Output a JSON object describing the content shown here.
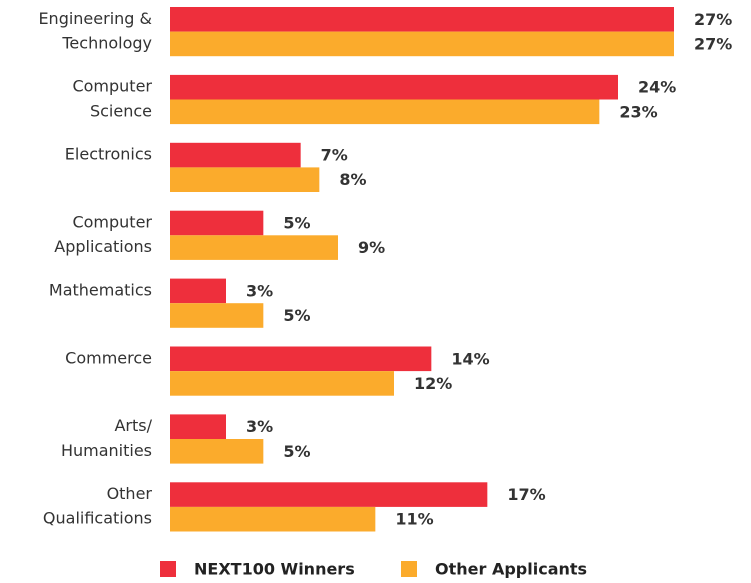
{
  "chart_data": {
    "type": "bar",
    "orientation": "horizontal",
    "categories": [
      [
        "Engineering &",
        "Technology"
      ],
      [
        "Computer",
        "Science"
      ],
      [
        "Electronics"
      ],
      [
        "Computer",
        "Applications"
      ],
      [
        "Mathematics"
      ],
      [
        "Commerce"
      ],
      [
        "Arts/",
        "Humanities"
      ],
      [
        "Other",
        "Qualifications"
      ]
    ],
    "series": [
      {
        "name": "NEXT100 Winners",
        "color": "#ee2f3c",
        "values": [
          27,
          24,
          7,
          5,
          3,
          14,
          3,
          17
        ],
        "value_labels": [
          "27%",
          "24%",
          "7%",
          "5%",
          "3%",
          "14%",
          "3%",
          "17%"
        ]
      },
      {
        "name": "Other Applicants",
        "color": "#fbab2c",
        "values": [
          27,
          23,
          8,
          9,
          5,
          12,
          5,
          11
        ],
        "value_labels": [
          "27%",
          "23%",
          "8%",
          "9%",
          "5%",
          "12%",
          "5%",
          "11%"
        ]
      }
    ],
    "legend": "bottom"
  }
}
